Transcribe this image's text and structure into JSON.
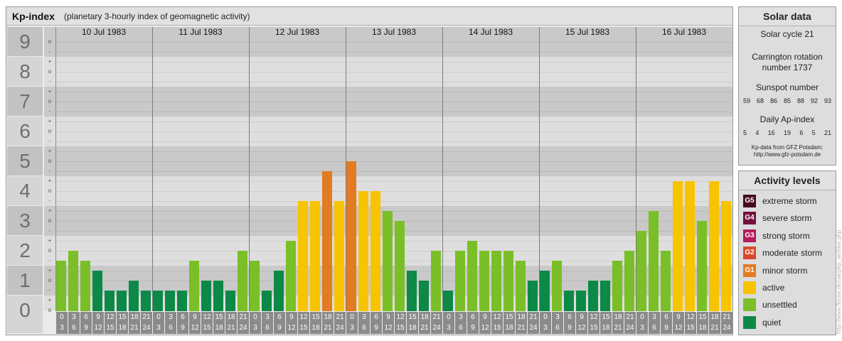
{
  "chart_data": {
    "type": "bar",
    "title": "Kp-index",
    "subtitle": "(planetary 3-hourly index of geomagnetic activity)",
    "ylim": [
      0,
      9
    ],
    "grid": true,
    "legend_placement": "right",
    "y_ticks": [
      "0",
      "1",
      "2",
      "3",
      "4",
      "5",
      "6",
      "7",
      "8",
      "9"
    ],
    "y_minor_labels": [
      "o",
      "+",
      "-"
    ],
    "intervals": [
      [
        "0",
        "3"
      ],
      [
        "3",
        "6"
      ],
      [
        "6",
        "9"
      ],
      [
        "9",
        "12"
      ],
      [
        "12",
        "15"
      ],
      [
        "15",
        "18"
      ],
      [
        "18",
        "21"
      ],
      [
        "21",
        "24"
      ]
    ],
    "days": [
      {
        "label": "10 Jul 1983",
        "kp": [
          1.67,
          2,
          1.67,
          1.33,
          0.67,
          0.67,
          1,
          0.67
        ]
      },
      {
        "label": "11 Jul 1983",
        "kp": [
          0.67,
          0.67,
          0.67,
          1.67,
          1,
          1,
          0.67,
          2
        ]
      },
      {
        "label": "12 Jul 1983",
        "kp": [
          1.67,
          0.67,
          1.33,
          2.33,
          3.67,
          3.67,
          4.67,
          3.67
        ]
      },
      {
        "label": "13 Jul 1983",
        "kp": [
          5,
          4,
          4,
          3.33,
          3,
          1.33,
          1,
          2
        ]
      },
      {
        "label": "14 Jul 1983",
        "kp": [
          0.67,
          2,
          2.33,
          2,
          2,
          2,
          1.67,
          1
        ]
      },
      {
        "label": "15 Jul 1983",
        "kp": [
          1.33,
          1.67,
          0.67,
          0.67,
          1,
          1,
          1.67,
          2
        ]
      },
      {
        "label": "16 Jul 1983",
        "kp": [
          2.67,
          3.33,
          2,
          4.33,
          4.33,
          3,
          4.33,
          3.67
        ]
      }
    ]
  },
  "solar_data": {
    "title": "Solar data",
    "solar_cycle": "Solar cycle 21",
    "carrington_line1": "Carrington rotation",
    "carrington_line2": "number 1737",
    "sunspot_title": "Sunspot number",
    "sunspot_values": [
      "59",
      "68",
      "86",
      "85",
      "88",
      "92",
      "93"
    ],
    "ap_title": "Daily Ap-index",
    "ap_values": [
      "5",
      "4",
      "16",
      "19",
      "6",
      "5",
      "21"
    ],
    "source_line1": "Kp-data from GFZ Potsdam:",
    "source_line2": "http://www.gfz-potsdam.de"
  },
  "activity_levels": {
    "title": "Activity levels",
    "items": [
      {
        "code": "G5",
        "label": "extreme storm",
        "color": "#470a21"
      },
      {
        "code": "G4",
        "label": "severe storm",
        "color": "#75103d"
      },
      {
        "code": "G3",
        "label": "strong storm",
        "color": "#b51b5c"
      },
      {
        "code": "G2",
        "label": "moderate storm",
        "color": "#d94a2a"
      },
      {
        "code": "G1",
        "label": "minor storm",
        "color": "#e27b21"
      },
      {
        "label": "active",
        "color": "#f8c300"
      },
      {
        "label": "unsettled",
        "color": "#7abf27"
      },
      {
        "label": "quiet",
        "color": "#0c8947"
      }
    ]
  },
  "credit": "http://www.fleuse.de/uarg/kp_archive.php"
}
